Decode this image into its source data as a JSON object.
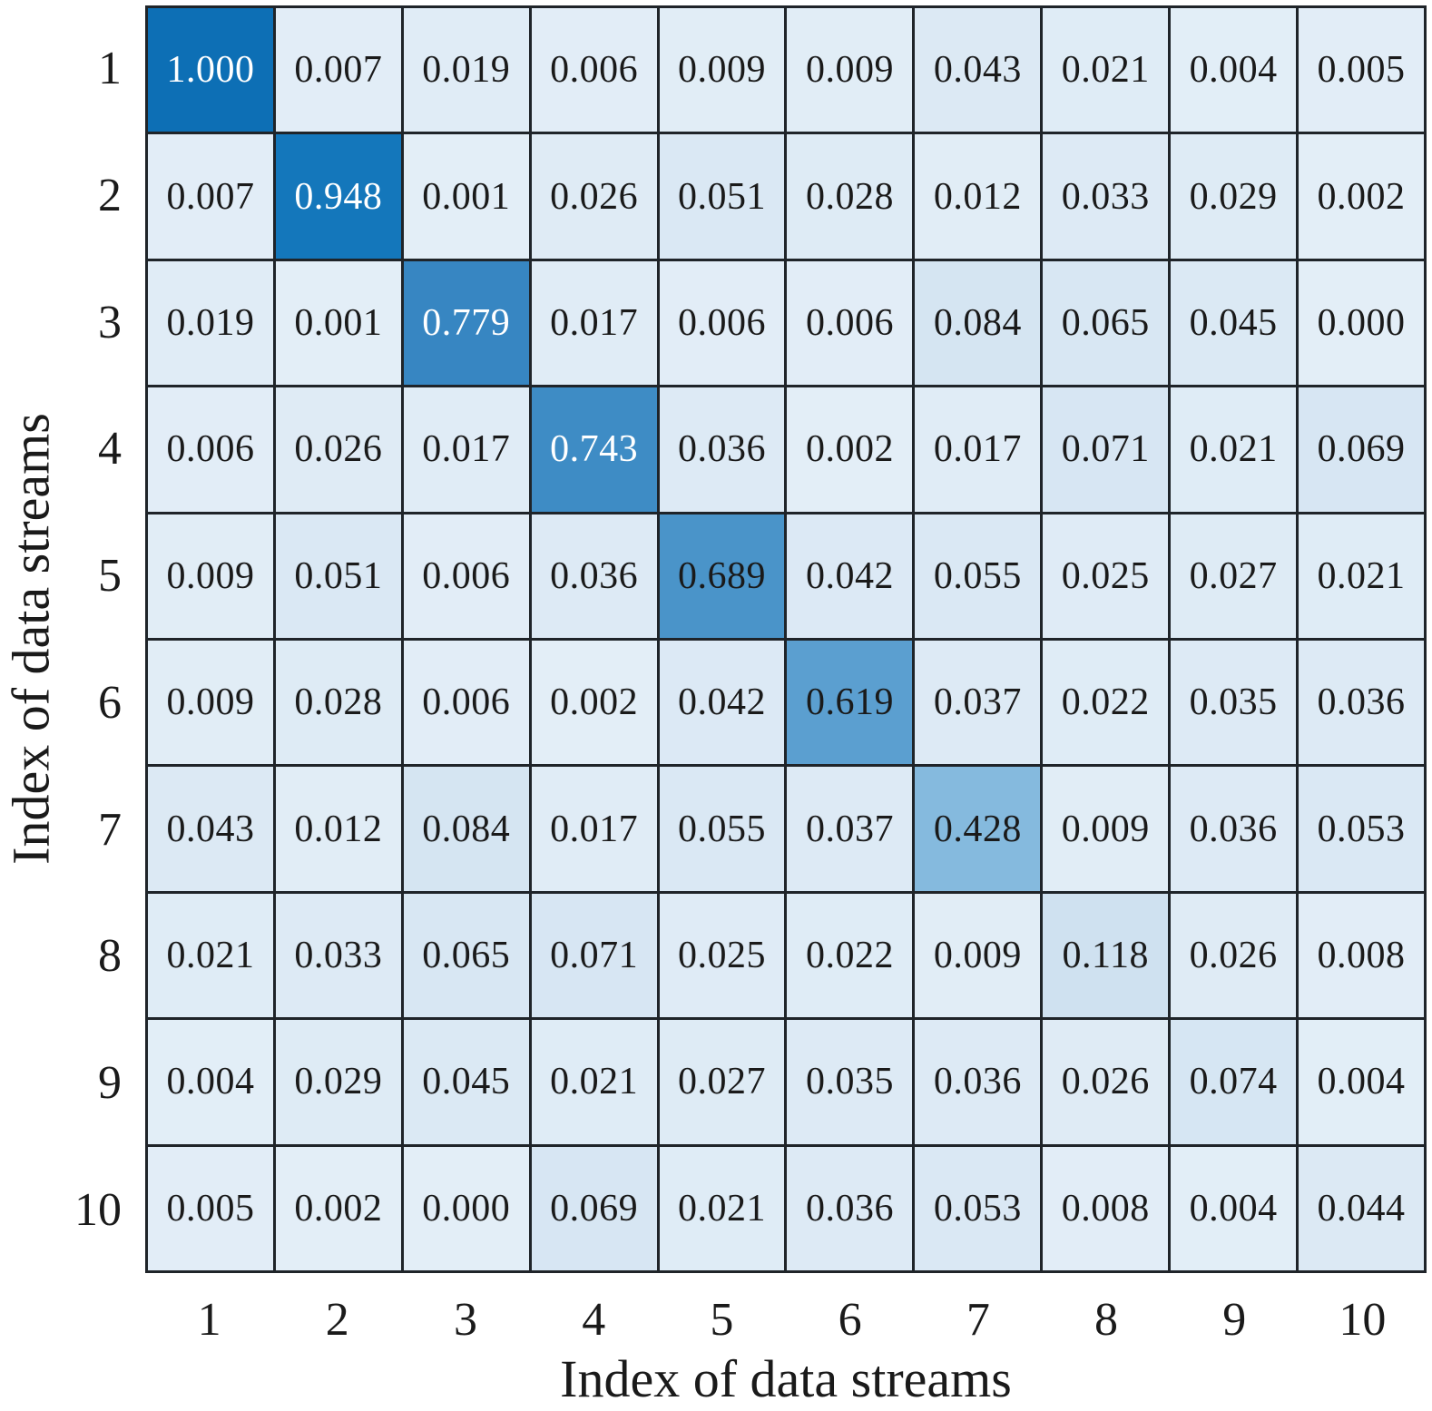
{
  "chart_data": {
    "type": "heatmap",
    "xlabel": "Index of data streams",
    "ylabel": "Index of data streams",
    "x_ticks": [
      "1",
      "2",
      "3",
      "4",
      "5",
      "6",
      "7",
      "8",
      "9",
      "10"
    ],
    "y_ticks": [
      "1",
      "2",
      "3",
      "4",
      "5",
      "6",
      "7",
      "8",
      "9",
      "10"
    ],
    "value_decimals": 3,
    "matrix": [
      [
        1.0,
        0.007,
        0.019,
        0.006,
        0.009,
        0.009,
        0.043,
        0.021,
        0.004,
        0.005
      ],
      [
        0.007,
        0.948,
        0.001,
        0.026,
        0.051,
        0.028,
        0.012,
        0.033,
        0.029,
        0.002
      ],
      [
        0.019,
        0.001,
        0.779,
        0.017,
        0.006,
        0.006,
        0.084,
        0.065,
        0.045,
        0.0
      ],
      [
        0.006,
        0.026,
        0.017,
        0.743,
        0.036,
        0.002,
        0.017,
        0.071,
        0.021,
        0.069
      ],
      [
        0.009,
        0.051,
        0.006,
        0.036,
        0.689,
        0.042,
        0.055,
        0.025,
        0.027,
        0.021
      ],
      [
        0.009,
        0.028,
        0.006,
        0.002,
        0.042,
        0.619,
        0.037,
        0.022,
        0.035,
        0.036
      ],
      [
        0.043,
        0.012,
        0.084,
        0.017,
        0.055,
        0.037,
        0.428,
        0.009,
        0.036,
        0.053
      ],
      [
        0.021,
        0.033,
        0.065,
        0.071,
        0.025,
        0.022,
        0.009,
        0.118,
        0.026,
        0.008
      ],
      [
        0.004,
        0.029,
        0.045,
        0.021,
        0.027,
        0.035,
        0.036,
        0.026,
        0.074,
        0.004
      ],
      [
        0.005,
        0.002,
        0.0,
        0.069,
        0.021,
        0.036,
        0.053,
        0.008,
        0.004,
        0.044
      ]
    ],
    "colormap": {
      "name": "blues",
      "anchors": [
        {
          "value": 0.0,
          "color": "#e3eef7"
        },
        {
          "value": 0.118,
          "color": "#cfe1f0"
        },
        {
          "value": 0.428,
          "color": "#85bade"
        },
        {
          "value": 0.619,
          "color": "#5b9fd0"
        },
        {
          "value": 0.689,
          "color": "#4a94c9"
        },
        {
          "value": 0.743,
          "color": "#3e8cc5"
        },
        {
          "value": 0.779,
          "color": "#3786c2"
        },
        {
          "value": 0.948,
          "color": "#1477bb"
        },
        {
          "value": 1.0,
          "color": "#0d6fb5"
        }
      ],
      "grid_line_color": "#1f2429",
      "text_dark": "#1a1a1a",
      "text_light": "#ffffff",
      "light_text_threshold": 0.7
    },
    "legend": "none",
    "grid": "on"
  }
}
